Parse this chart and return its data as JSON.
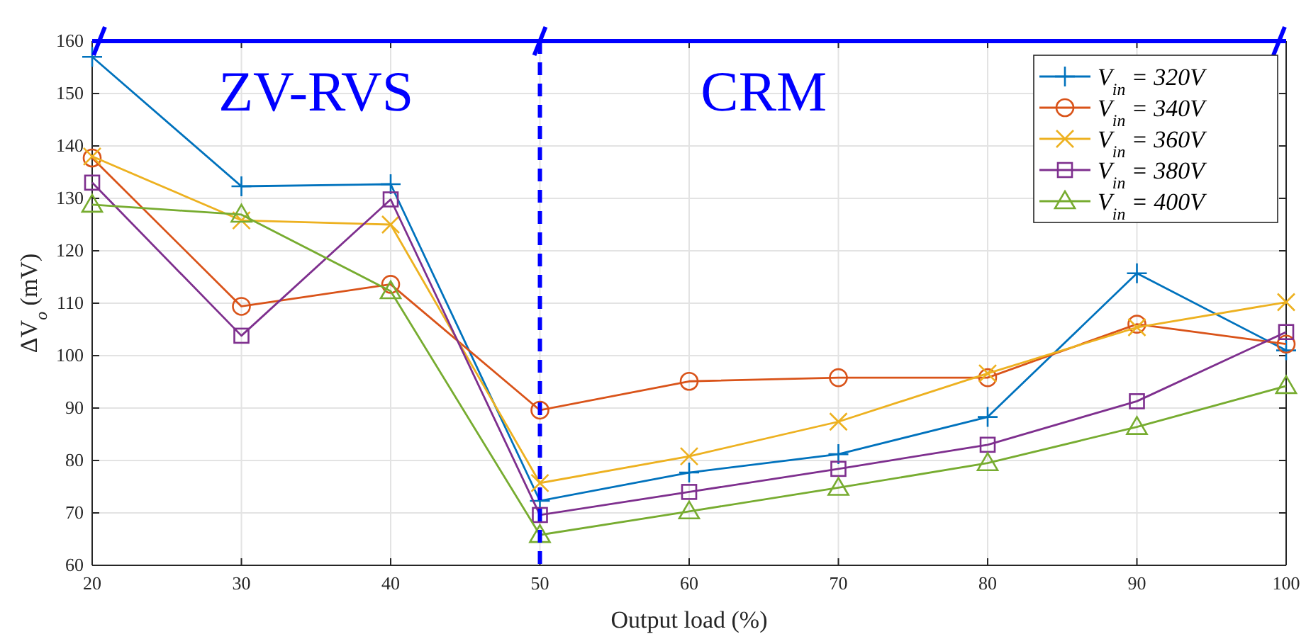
{
  "chart_data": {
    "type": "line",
    "xlabel": "Output load (%)",
    "ylabel": "ΔV$_{o}$ (mV)",
    "x": [
      20,
      30,
      40,
      50,
      60,
      70,
      80,
      90,
      100
    ],
    "xlim": [
      20,
      100
    ],
    "xticks": [
      20,
      30,
      40,
      50,
      60,
      70,
      80,
      90,
      100
    ],
    "ylim": [
      60,
      160
    ],
    "yticks": [
      60,
      70,
      80,
      90,
      100,
      110,
      120,
      130,
      140,
      150,
      160
    ],
    "grid": true,
    "legend": "top right",
    "line_style": "solid",
    "series": [
      {
        "name": "V$_{in}$ = 320V",
        "color": "#0072bd",
        "marker": "cross",
        "values": [
          157,
          132.3,
          132.7,
          72.3,
          77.7,
          81.2,
          88.3,
          115.7,
          101
        ]
      },
      {
        "name": "V$_{in}$ = 340V",
        "color": "#d95319",
        "marker": "circle",
        "values": [
          137.7,
          109.4,
          113.6,
          89.6,
          95.1,
          95.8,
          95.8,
          106,
          102.2
        ]
      },
      {
        "name": "V$_{in}$ = 360V",
        "color": "#edb120",
        "marker": "x",
        "values": [
          138,
          125.8,
          125,
          75.7,
          80.8,
          87.4,
          96.6,
          105.4,
          110.2
        ]
      },
      {
        "name": "V$_{in}$ = 380V",
        "color": "#7e2f8e",
        "marker": "square",
        "values": [
          133,
          103.8,
          129.8,
          69.6,
          74,
          78.4,
          83,
          91.3,
          104.5
        ]
      },
      {
        "name": "V$_{in}$ = 400V",
        "color": "#77ac30",
        "marker": "triangle",
        "values": [
          128.8,
          126.9,
          112.3,
          65.8,
          70.3,
          74.8,
          79.5,
          86.4,
          94.2
        ]
      }
    ],
    "ref_lines": [
      {
        "axis": "x",
        "value": 50,
        "color": "#0000ff",
        "line_style": "dashed"
      },
      {
        "axis": "y",
        "value": 160,
        "color": "#0000ff",
        "line_style": "solid"
      }
    ],
    "annotations": [
      "ZV-RVS",
      "CRM"
    ]
  }
}
